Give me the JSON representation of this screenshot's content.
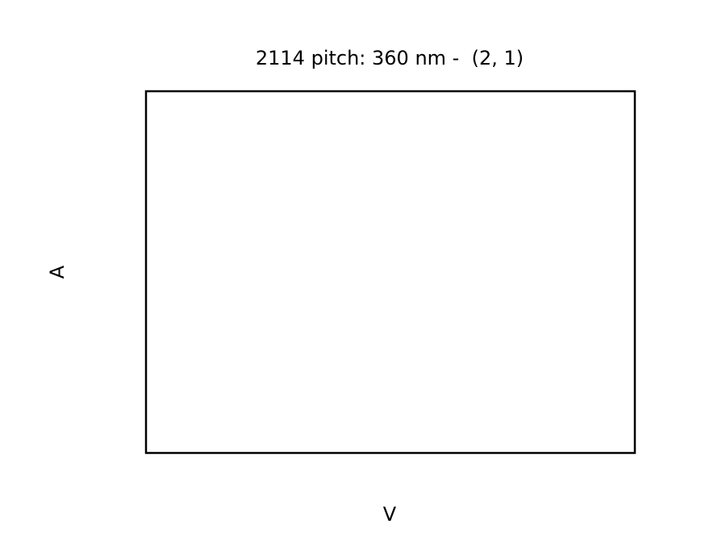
{
  "chart_data": {
    "type": "line",
    "title": "2114 pitch: 360 nm -  (2, 1)",
    "xlabel": "V",
    "ylabel": "A",
    "series": [],
    "grid": false,
    "legend": "none"
  },
  "colors": {
    "background": "#ffffff",
    "frame": "#000000",
    "text": "#000000"
  }
}
